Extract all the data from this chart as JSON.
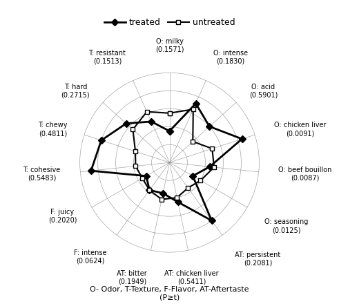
{
  "categories": [
    "O: milky\n(0.1571)",
    "O: intense\n(0.1830)",
    "O: acid\n(0.5901)",
    "O: chicken liver\n(0.0091)",
    "O: beef bouillon\n(0.0087)",
    "O: seasoning\n(0.0125)",
    "AT: persistent\n(0.2081)",
    "AT: chicken liver\n(0.5411)",
    "AT: bitter\n(0.1949)",
    "F: intense\n(0.0624)",
    "F: juicy\n(0.2020)",
    "T: cohesive\n(0.5483)",
    "T: chewy\n(0.4811)",
    "T: hard\n(0.2715)",
    "T: resistant\n(0.1513)"
  ],
  "treated": [
    0.35,
    0.72,
    0.6,
    0.85,
    0.45,
    0.3,
    0.8,
    0.45,
    0.35,
    0.38,
    0.3,
    0.88,
    0.8,
    0.65,
    0.5
  ],
  "untreated": [
    0.55,
    0.65,
    0.35,
    0.5,
    0.5,
    0.4,
    0.35,
    0.4,
    0.42,
    0.38,
    0.35,
    0.38,
    0.4,
    0.55,
    0.62
  ],
  "background_color": "#ffffff",
  "footnote": "O- Odor, T-Texture, F-Flavor, AT-Aftertaste\n(P≥t)",
  "label_offsets": [
    [
      0.5,
      1.0,
      "center",
      "bottom"
    ],
    [
      0.5,
      1.0,
      "left",
      "bottom"
    ],
    [
      0.5,
      1.0,
      "left",
      "center"
    ],
    [
      0.5,
      1.0,
      "left",
      "center"
    ],
    [
      0.5,
      1.0,
      "left",
      "center"
    ],
    [
      0.5,
      1.0,
      "left",
      "center"
    ],
    [
      0.5,
      1.0,
      "left",
      "top"
    ],
    [
      0.5,
      1.0,
      "center",
      "top"
    ],
    [
      0.5,
      1.0,
      "right",
      "top"
    ],
    [
      0.5,
      1.0,
      "right",
      "top"
    ],
    [
      0.5,
      1.0,
      "right",
      "center"
    ],
    [
      0.5,
      1.0,
      "right",
      "center"
    ],
    [
      0.5,
      1.0,
      "right",
      "center"
    ],
    [
      0.5,
      1.0,
      "right",
      "center"
    ],
    [
      0.5,
      1.0,
      "right",
      "bottom"
    ]
  ]
}
